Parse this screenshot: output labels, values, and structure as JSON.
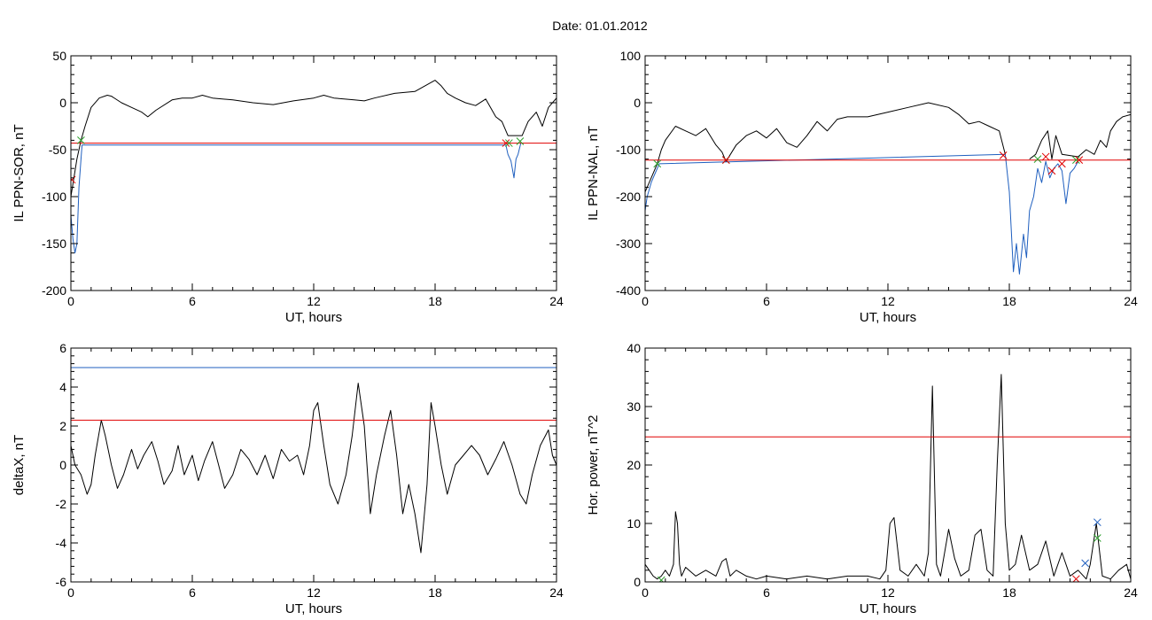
{
  "title": "Date:  01.01.2012",
  "chart_data": [
    {
      "type": "line",
      "panel": "top-left",
      "xlabel": "UT, hours",
      "ylabel": "IL PPN-SOR, nT",
      "xlim": [
        0,
        24
      ],
      "ylim": [
        -200,
        50
      ],
      "xticks": [
        0,
        6,
        12,
        18,
        24
      ],
      "yticks": [
        -200,
        -150,
        -100,
        -50,
        0,
        50
      ],
      "series": [
        {
          "color": "#000000",
          "x": [
            0,
            0.3,
            0.5,
            0.7,
            1.0,
            1.4,
            1.8,
            2.0,
            2.5,
            3.0,
            3.5,
            3.8,
            4.2,
            5.0,
            5.5,
            6.0,
            6.5,
            7.0,
            8.0,
            9.0,
            10.0,
            11.0,
            12.0,
            12.5,
            13.0,
            14.0,
            14.5,
            15.0,
            16.0,
            17.0,
            17.5,
            18.0,
            18.3,
            18.6,
            19.0,
            19.5,
            20.0,
            20.5,
            21.0,
            21.3,
            21.6,
            22.3,
            22.6,
            23.0,
            23.3,
            23.6,
            24.0
          ],
          "y": [
            -100,
            -60,
            -40,
            -25,
            -5,
            5,
            8,
            7,
            0,
            -5,
            -10,
            -15,
            -8,
            3,
            5,
            5,
            8,
            5,
            3,
            0,
            -2,
            2,
            5,
            8,
            5,
            3,
            2,
            5,
            10,
            12,
            18,
            24,
            18,
            10,
            5,
            0,
            -3,
            4,
            -15,
            -20,
            -35,
            -35,
            -20,
            -10,
            -25,
            -5,
            5
          ]
        },
        {
          "color": "#1f5fbf",
          "x": [
            0,
            0.1,
            0.2,
            0.3,
            0.4,
            0.5,
            0.55,
            21.5,
            21.6,
            21.75,
            21.9,
            22.0,
            22.1,
            22.25
          ],
          "y": [
            -120,
            -145,
            -160,
            -150,
            -90,
            -60,
            -45,
            -45,
            -55,
            -62,
            -80,
            -60,
            -55,
            -42
          ]
        },
        {
          "color": "#e00000",
          "x": [
            0,
            24
          ],
          "y": [
            -43,
            -43
          ]
        }
      ],
      "markers": [
        {
          "x": 0.5,
          "y": -40,
          "color": "#2ca02c"
        },
        {
          "x": 21.5,
          "y": -43,
          "color": "#e00000"
        },
        {
          "x": 21.65,
          "y": -43,
          "color": "#2ca02c"
        },
        {
          "x": 22.2,
          "y": -41,
          "color": "#2ca02c"
        },
        {
          "x": 0.05,
          "y": -82,
          "color": "#e00000"
        }
      ]
    },
    {
      "type": "line",
      "panel": "top-right",
      "xlabel": "UT, hours",
      "ylabel": "IL PPN-NAL, nT",
      "xlim": [
        0,
        24
      ],
      "ylim": [
        -400,
        100
      ],
      "xticks": [
        0,
        6,
        12,
        18,
        24
      ],
      "yticks": [
        -400,
        -300,
        -200,
        -100,
        0,
        100
      ],
      "series": [
        {
          "color": "#000000",
          "x": [
            0,
            0.3,
            0.6,
            0.8,
            1.0,
            1.5,
            2.0,
            2.5,
            3.0,
            3.5,
            3.8,
            4.0,
            4.5,
            5.0,
            5.5,
            6.0,
            6.5,
            7.0,
            7.5,
            8.0,
            8.5,
            9.0,
            9.5,
            10.0,
            11.0,
            12.0,
            13.0,
            14.0,
            15.0,
            15.5,
            16.0,
            16.5,
            17.0,
            17.5,
            17.8
          ],
          "y": [
            -190,
            -160,
            -130,
            -100,
            -80,
            -50,
            -60,
            -70,
            -55,
            -90,
            -105,
            -125,
            -90,
            -70,
            -60,
            -75,
            -55,
            -85,
            -95,
            -70,
            -40,
            -60,
            -35,
            -30,
            -30,
            -20,
            -10,
            0,
            -10,
            -25,
            -45,
            -40,
            -50,
            -60,
            -110
          ]
        },
        {
          "color": "#1f5fbf",
          "x": [
            0,
            0.1,
            0.2,
            0.3,
            0.4,
            0.5,
            0.6,
            0.7,
            17.8,
            18.0,
            18.2,
            18.35,
            18.5,
            18.7,
            18.85,
            19.0,
            19.2,
            19.4,
            19.6,
            19.8,
            20.0,
            20.2,
            20.4,
            20.6,
            20.8,
            21.0,
            21.2,
            21.4
          ],
          "y": [
            -230,
            -200,
            -185,
            -170,
            -160,
            -150,
            -140,
            -130,
            -110,
            -190,
            -360,
            -300,
            -365,
            -280,
            -330,
            -230,
            -200,
            -140,
            -170,
            -125,
            -160,
            -140,
            -130,
            -145,
            -215,
            -150,
            -140,
            -125
          ]
        },
        {
          "color": "#000000",
          "x": [
            19.0,
            19.3,
            19.6,
            19.9,
            20.1,
            20.3,
            20.6,
            21.4,
            21.8,
            22.2,
            22.5,
            22.8,
            23.0,
            23.3,
            23.6,
            24.0
          ],
          "y": [
            -120,
            -110,
            -80,
            -60,
            -120,
            -70,
            -110,
            -115,
            -100,
            -110,
            -80,
            -95,
            -60,
            -40,
            -30,
            -25
          ]
        },
        {
          "color": "#e00000",
          "x": [
            0,
            24
          ],
          "y": [
            -122,
            -122
          ]
        }
      ],
      "markers": [
        {
          "x": 0.6,
          "y": -130,
          "color": "#2ca02c"
        },
        {
          "x": 4.0,
          "y": -122,
          "color": "#2ca02c"
        },
        {
          "x": 4.0,
          "y": -122,
          "color": "#e00000"
        },
        {
          "x": 17.7,
          "y": -112,
          "color": "#e00000"
        },
        {
          "x": 19.4,
          "y": -120,
          "color": "#2ca02c"
        },
        {
          "x": 19.8,
          "y": -115,
          "color": "#e00000"
        },
        {
          "x": 20.1,
          "y": -145,
          "color": "#e00000"
        },
        {
          "x": 20.6,
          "y": -130,
          "color": "#e00000"
        },
        {
          "x": 21.3,
          "y": -122,
          "color": "#2ca02c"
        },
        {
          "x": 21.45,
          "y": -122,
          "color": "#e00000"
        }
      ]
    },
    {
      "type": "line",
      "panel": "bottom-left",
      "xlabel": "UT, hours",
      "ylabel": "deltaX, nT",
      "xlim": [
        0,
        24
      ],
      "ylim": [
        -6,
        6
      ],
      "xticks": [
        0,
        6,
        12,
        18,
        24
      ],
      "yticks": [
        -6,
        -4,
        -2,
        0,
        2,
        4,
        6
      ],
      "series": [
        {
          "color": "#000000",
          "x": [
            0,
            0.2,
            0.5,
            0.8,
            1.0,
            1.2,
            1.5,
            1.7,
            2.0,
            2.3,
            2.6,
            3.0,
            3.3,
            3.6,
            4.0,
            4.3,
            4.6,
            5.0,
            5.3,
            5.6,
            6.0,
            6.3,
            6.6,
            7.0,
            7.3,
            7.6,
            8.0,
            8.4,
            8.8,
            9.2,
            9.6,
            10.0,
            10.4,
            10.8,
            11.2,
            11.5,
            11.8,
            12.0,
            12.2,
            12.5,
            12.8,
            13.2,
            13.6,
            13.9,
            14.2,
            14.5,
            14.8,
            15.1,
            15.5,
            15.8,
            16.1,
            16.4,
            16.7,
            17.0,
            17.3,
            17.6,
            17.8,
            18.0,
            18.3,
            18.6,
            19.0,
            19.4,
            19.8,
            20.2,
            20.6,
            21.0,
            21.4,
            21.8,
            22.2,
            22.5,
            22.8,
            23.2,
            23.6,
            23.8,
            24.0
          ],
          "y": [
            1.0,
            0.0,
            -0.5,
            -1.5,
            -1.0,
            0.5,
            2.3,
            1.5,
            0.0,
            -1.2,
            -0.5,
            0.8,
            -0.2,
            0.5,
            1.2,
            0.2,
            -1.0,
            -0.3,
            1.0,
            -0.5,
            0.5,
            -0.8,
            0.2,
            1.2,
            0.0,
            -1.2,
            -0.5,
            0.8,
            0.3,
            -0.5,
            0.5,
            -0.7,
            0.8,
            0.2,
            0.5,
            -0.5,
            1.0,
            2.8,
            3.2,
            1.0,
            -1.0,
            -2.0,
            -0.5,
            1.5,
            4.2,
            2.0,
            -2.5,
            -0.5,
            1.5,
            2.8,
            0.5,
            -2.5,
            -1.0,
            -2.5,
            -4.5,
            -1.0,
            3.2,
            2.0,
            0.0,
            -1.5,
            0.0,
            0.5,
            1.0,
            0.5,
            -0.5,
            0.3,
            1.2,
            0.0,
            -1.5,
            -2.0,
            -0.5,
            1.0,
            1.8,
            0.5,
            0.0
          ]
        },
        {
          "color": "#1f5fbf",
          "x": [
            0,
            24
          ],
          "y": [
            5.0,
            5.0
          ]
        },
        {
          "color": "#e00000",
          "x": [
            0,
            24
          ],
          "y": [
            2.3,
            2.3
          ]
        }
      ]
    },
    {
      "type": "line",
      "panel": "bottom-right",
      "xlabel": "UT, hours",
      "ylabel": "Hor. power, nT^2",
      "xlim": [
        0,
        24
      ],
      "ylim": [
        0,
        40
      ],
      "xticks": [
        0,
        6,
        12,
        18,
        24
      ],
      "yticks": [
        0,
        10,
        20,
        30,
        40
      ],
      "series": [
        {
          "color": "#000000",
          "x": [
            0,
            0.2,
            0.4,
            0.6,
            0.8,
            1.0,
            1.2,
            1.4,
            1.5,
            1.6,
            1.7,
            1.8,
            2.0,
            2.5,
            3.0,
            3.5,
            3.8,
            4.0,
            4.2,
            4.5,
            5.0,
            5.5,
            6.0,
            7.0,
            8.0,
            9.0,
            10.0,
            11.0,
            11.6,
            11.9,
            12.1,
            12.3,
            12.6,
            13.0,
            13.4,
            13.8,
            14.0,
            14.2,
            14.3,
            14.4,
            14.6,
            15.0,
            15.3,
            15.6,
            16.0,
            16.3,
            16.6,
            16.9,
            17.2,
            17.4,
            17.6,
            17.8,
            18.0,
            18.3,
            18.6,
            19.0,
            19.4,
            19.8,
            20.2,
            20.6,
            21.0,
            21.4,
            21.8,
            22.0,
            22.3,
            22.6,
            23.0,
            23.4,
            23.8,
            24.0
          ],
          "y": [
            3.0,
            2.0,
            1.0,
            0.5,
            1.0,
            2.0,
            1.0,
            3.0,
            12.0,
            10.0,
            3.0,
            1.0,
            2.5,
            1.0,
            2.0,
            1.0,
            3.5,
            4.0,
            1.0,
            2.0,
            1.0,
            0.5,
            1.0,
            0.5,
            1.0,
            0.5,
            1.0,
            1.0,
            0.5,
            2.0,
            10.0,
            11.0,
            2.0,
            1.0,
            3.0,
            1.0,
            5.0,
            33.5,
            18.0,
            3.0,
            1.0,
            9.0,
            4.0,
            1.0,
            2.0,
            8.0,
            9.0,
            2.0,
            1.0,
            20.0,
            35.5,
            10.0,
            2.0,
            3.0,
            8.0,
            2.0,
            3.0,
            7.0,
            1.0,
            5.0,
            1.0,
            2.0,
            0.5,
            3.0,
            10.0,
            1.0,
            0.5,
            2.0,
            3.0,
            0.5
          ]
        },
        {
          "color": "#e00000",
          "x": [
            0,
            24
          ],
          "y": [
            24.8,
            24.8
          ]
        }
      ],
      "markers": [
        {
          "x": 0.8,
          "y": 0.3,
          "color": "#2ca02c"
        },
        {
          "x": 21.3,
          "y": 0.5,
          "color": "#e00000"
        },
        {
          "x": 21.75,
          "y": 3.2,
          "color": "#1f5fbf"
        },
        {
          "x": 22.35,
          "y": 10.2,
          "color": "#1f5fbf"
        },
        {
          "x": 22.35,
          "y": 7.5,
          "color": "#2ca02c"
        }
      ]
    }
  ]
}
